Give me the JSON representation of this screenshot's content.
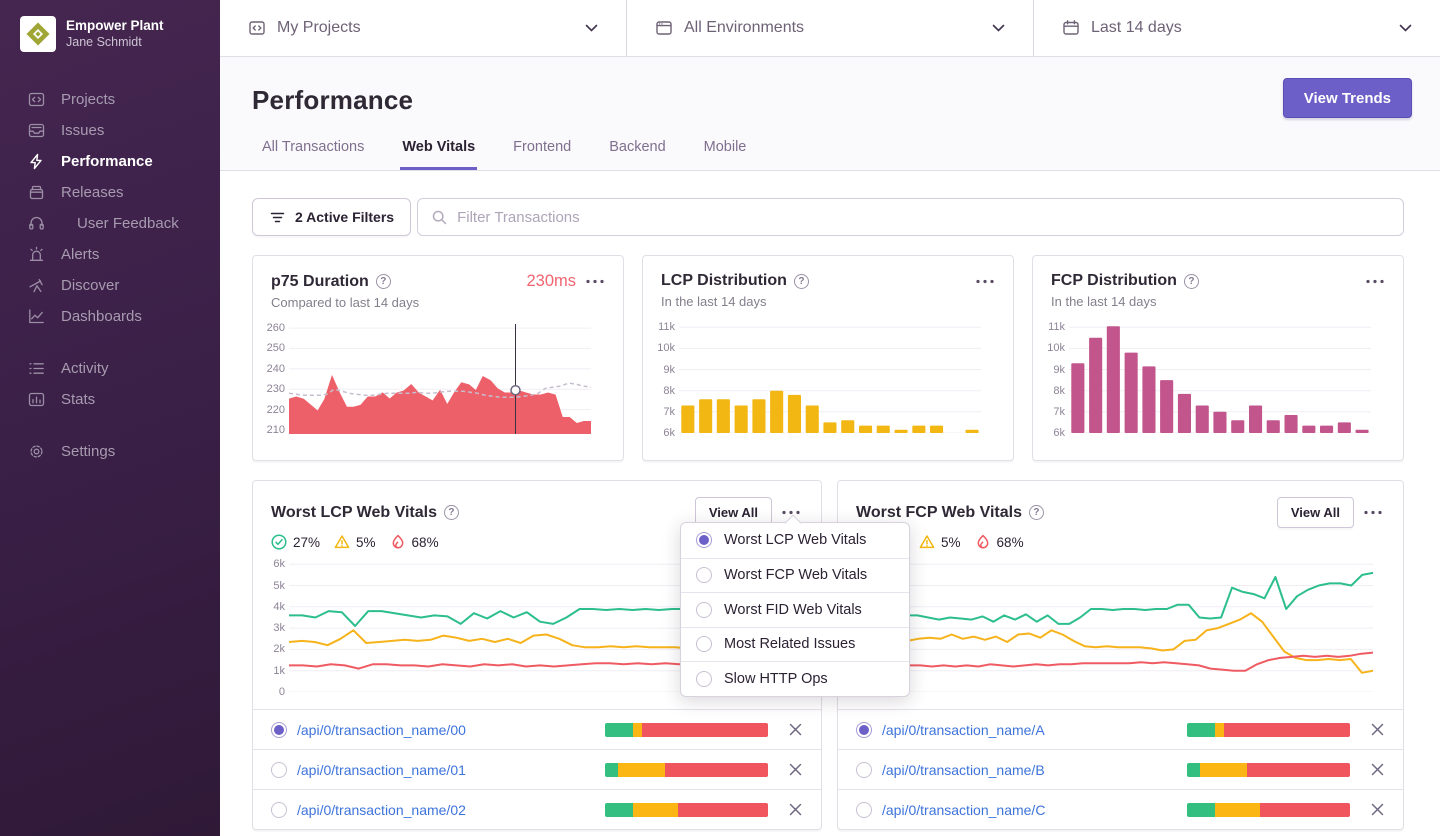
{
  "brand": {
    "org": "Empower Plant",
    "user": "Jane Schmidt"
  },
  "sidebar": {
    "items": [
      {
        "label": "Projects"
      },
      {
        "label": "Issues"
      },
      {
        "label": "Performance",
        "active": true
      },
      {
        "label": "Releases"
      },
      {
        "label": "User Feedback"
      },
      {
        "label": "Alerts"
      },
      {
        "label": "Discover"
      },
      {
        "label": "Dashboards"
      }
    ],
    "secondary": [
      {
        "label": "Activity"
      },
      {
        "label": "Stats"
      }
    ],
    "settings_label": "Settings"
  },
  "topbar": {
    "project_filter": "My Projects",
    "environment_filter": "All Environments",
    "date_filter": "Last 14 days"
  },
  "header": {
    "title": "Performance",
    "view_trends_label": "View Trends",
    "tabs": [
      {
        "label": "All Transactions"
      },
      {
        "label": "Web Vitals",
        "active": true
      },
      {
        "label": "Frontend"
      },
      {
        "label": "Backend"
      },
      {
        "label": "Mobile"
      }
    ]
  },
  "filters": {
    "active_filters_label": "2 Active Filters",
    "search_placeholder": "Filter Transactions"
  },
  "colors": {
    "accent": "#6C5FC7",
    "good_green": "#2CBE8C",
    "meh_yellow": "#F2B712",
    "poor_red": "#EF5B62",
    "p75_area": "#EE6069",
    "fcp_bar": "#C2568C",
    "link_blue": "#3D74DB"
  },
  "cards": {
    "p75": {
      "title": "p75 Duration",
      "value": "230ms",
      "subtitle": "Compared to last 14 days"
    },
    "lcp": {
      "title": "LCP Distribution",
      "subtitle": "In the last 14 days"
    },
    "fcp": {
      "title": "FCP Distribution",
      "subtitle": "In the last 14 days"
    },
    "worst_lcp": {
      "title": "Worst LCP Web Vitals",
      "good_pct": "27%",
      "meh_pct": "5%",
      "poor_pct": "68%",
      "view_all_label": "View All"
    },
    "worst_fcp": {
      "title": "Worst FCP Web Vitals",
      "good_pct": "27%",
      "meh_pct": "5%",
      "poor_pct": "68%",
      "view_all_label": "View All"
    }
  },
  "menu": {
    "items": [
      {
        "label": "Worst LCP Web Vitals",
        "selected": true
      },
      {
        "label": "Worst FCP Web Vitals",
        "selected": false
      },
      {
        "label": "Worst FID Web Vitals",
        "selected": false
      },
      {
        "label": "Most Related Issues",
        "selected": false
      },
      {
        "label": "Slow HTTP Ops",
        "selected": false
      }
    ]
  },
  "transactions": {
    "left": [
      {
        "name": "/api/0/transaction_name/00",
        "selected": true,
        "bar": [
          17,
          6,
          77
        ]
      },
      {
        "name": "/api/0/transaction_name/01",
        "selected": false,
        "bar": [
          8,
          29,
          63
        ]
      },
      {
        "name": "/api/0/transaction_name/02",
        "selected": false,
        "bar": [
          17,
          28,
          55
        ]
      }
    ],
    "right": [
      {
        "name": "/api/0/transaction_name/A",
        "selected": true,
        "bar": [
          17,
          6,
          77
        ]
      },
      {
        "name": "/api/0/transaction_name/B",
        "selected": false,
        "bar": [
          8,
          29,
          63
        ]
      },
      {
        "name": "/api/0/transaction_name/C",
        "selected": false,
        "bar": [
          17,
          28,
          55
        ]
      }
    ]
  },
  "chart_data": {
    "p75": {
      "type": "area",
      "title": "p75 Duration (ms), compared to last 14 days",
      "ylim": [
        208,
        262
      ],
      "yticks": [
        {
          "label": "260",
          "value": 260
        },
        {
          "label": "250",
          "value": 250
        },
        {
          "label": "240",
          "value": 240
        },
        {
          "label": "230",
          "value": 230
        },
        {
          "label": "220",
          "value": 220
        },
        {
          "label": "210",
          "value": 210
        }
      ],
      "series": [
        {
          "name": "p75 duration",
          "style": "area",
          "color": "#EE6069",
          "values": [
            225,
            226,
            225,
            222,
            219,
            225,
            236,
            228,
            221,
            221,
            222,
            226,
            226,
            228,
            225,
            228,
            229,
            232,
            228,
            226,
            224,
            229,
            222,
            228,
            233,
            232,
            229,
            236,
            234,
            230,
            228,
            228,
            229,
            228,
            227,
            227,
            228,
            227,
            216,
            216,
            213,
            214,
            214
          ]
        },
        {
          "name": "previous period",
          "style": "dashed",
          "color": "#C6BECF",
          "values": [
            228,
            227.5,
            227,
            227,
            227,
            227.5,
            230,
            229,
            228,
            227.5,
            227,
            227,
            227.5,
            228,
            228,
            228,
            228,
            228.5,
            228,
            228,
            228.5,
            229,
            229,
            229,
            228.5,
            228,
            227,
            226.5,
            226,
            226,
            226,
            226.5,
            227,
            228,
            230.5,
            231,
            231.5,
            233,
            232.5,
            231.5,
            231
          ]
        }
      ],
      "marker": {
        "x_fraction": 0.75,
        "value": 229.5
      }
    },
    "lcp_distribution": {
      "type": "bar",
      "title": "LCP Distribution, last 14 days",
      "color": "#F2B712",
      "baseline": 6000,
      "ylim": [
        6000,
        11200
      ],
      "yticks": [
        {
          "label": "11k",
          "value": 11000
        },
        {
          "label": "10k",
          "value": 10000
        },
        {
          "label": "9k",
          "value": 9000
        },
        {
          "label": "8k",
          "value": 8000
        },
        {
          "label": "7k",
          "value": 7000
        },
        {
          "label": "6k",
          "value": 6000
        }
      ],
      "values": [
        7300,
        7600,
        7600,
        7300,
        7600,
        8000,
        7800,
        7300,
        6500,
        6600,
        6350,
        6350,
        6150,
        6350,
        6350,
        null,
        6150
      ]
    },
    "fcp_distribution": {
      "type": "bar",
      "title": "FCP Distribution, last 14 days",
      "color": "#C2568C",
      "baseline": 6000,
      "ylim": [
        6000,
        11200
      ],
      "yticks": [
        {
          "label": "11k",
          "value": 11000
        },
        {
          "label": "10k",
          "value": 10000
        },
        {
          "label": "9k",
          "value": 9000
        },
        {
          "label": "8k",
          "value": 8000
        },
        {
          "label": "7k",
          "value": 7000
        },
        {
          "label": "6k",
          "value": 6000
        }
      ],
      "values": [
        9300,
        10500,
        11050,
        9800,
        9150,
        8500,
        7850,
        7300,
        7000,
        6600,
        7300,
        6600,
        6850,
        6350,
        6350,
        6500,
        6150
      ]
    },
    "worst_lcp": {
      "type": "line",
      "title": "Worst LCP Web Vitals",
      "ylim": [
        0,
        6200
      ],
      "yticks": [
        {
          "label": "6k",
          "value": 6000
        },
        {
          "label": "5k",
          "value": 5000
        },
        {
          "label": "4k",
          "value": 4000
        },
        {
          "label": "3k",
          "value": 3000
        },
        {
          "label": "2k",
          "value": 2000
        },
        {
          "label": "1k",
          "value": 1000
        },
        {
          "label": "0",
          "value": 0
        }
      ],
      "series": [
        {
          "name": "good",
          "color": "#2CBE8C",
          "values": [
            3600,
            3600,
            3500,
            3800,
            3750,
            3100,
            3800,
            3800,
            3700,
            3600,
            3500,
            3600,
            3550,
            3200,
            3700,
            3450,
            3800,
            3500,
            3750,
            3300,
            3200,
            3500,
            3900,
            3900,
            3850,
            3900,
            3850,
            3900,
            3850,
            3900,
            3900,
            4100,
            4050,
            3500,
            3400,
            3400,
            5200,
            5000,
            4600
          ]
        },
        {
          "name": "meh",
          "color": "#F6B31B",
          "values": [
            2350,
            2400,
            2350,
            2200,
            2500,
            2900,
            2300,
            2350,
            2400,
            2450,
            2400,
            2450,
            2650,
            2550,
            2400,
            2500,
            2350,
            2500,
            2300,
            2650,
            2700,
            2500,
            2200,
            2100,
            2100,
            2150,
            2100,
            2150,
            2100,
            2100,
            2100,
            2050,
            1950,
            1950,
            2400,
            2500,
            2600,
            2900,
            3200,
            3500
          ]
        },
        {
          "name": "poor",
          "color": "#EF5B62",
          "values": [
            1250,
            1250,
            1200,
            1300,
            1250,
            1100,
            1300,
            1300,
            1250,
            1250,
            1200,
            1300,
            1250,
            1200,
            1300,
            1250,
            1300,
            1200,
            1250,
            1200,
            1250,
            1300,
            1350,
            1350,
            1300,
            1350,
            1300,
            1350,
            1300,
            1350,
            1400,
            1350,
            1200,
            1100,
            1050,
            1000,
            1000
          ]
        }
      ]
    },
    "worst_fcp": {
      "type": "line",
      "title": "Worst FCP Web Vitals",
      "ylim": [
        0,
        6200
      ],
      "yticks": [
        {
          "label": "6k",
          "value": 6000
        },
        {
          "label": "5k",
          "value": 5000
        },
        {
          "label": "4k",
          "value": 4000
        },
        {
          "label": "3k",
          "value": 3000
        },
        {
          "label": "2k",
          "value": 2000
        },
        {
          "label": "1k",
          "value": 1000
        },
        {
          "label": "0",
          "value": 0
        }
      ],
      "series": [
        {
          "name": "good",
          "color": "#2CBE8C",
          "values": [
            3700,
            3300,
            3100,
            3600,
            3600,
            3500,
            3400,
            3500,
            3450,
            3400,
            3550,
            3300,
            3600,
            3400,
            3650,
            3300,
            3600,
            3200,
            3200,
            3500,
            3900,
            3900,
            3850,
            3900,
            3900,
            3850,
            3900,
            3900,
            4100,
            4100,
            3500,
            3450,
            3500,
            4900,
            4700,
            4600,
            4400,
            5400,
            3900,
            4500,
            4800,
            5000,
            5100,
            5100,
            5000,
            5500,
            5600
          ]
        },
        {
          "name": "meh",
          "color": "#F6B31B",
          "values": [
            2600,
            2900,
            2400,
            2400,
            2500,
            2550,
            2500,
            2700,
            2500,
            2600,
            2450,
            2600,
            2350,
            2700,
            2750,
            2550,
            2900,
            2700,
            2400,
            2150,
            2100,
            2150,
            2100,
            2100,
            2100,
            2050,
            1950,
            2000,
            2400,
            2450,
            2900,
            3000,
            3200,
            3400,
            3700,
            3300,
            2600,
            1900,
            1600,
            1500,
            1500,
            1550,
            1500,
            1550,
            900,
            1000
          ]
        },
        {
          "name": "poor",
          "color": "#EF5B62",
          "values": [
            1300,
            1150,
            1300,
            1250,
            1250,
            1200,
            1250,
            1200,
            1250,
            1200,
            1300,
            1250,
            1200,
            1250,
            1300,
            1250,
            1300,
            1300,
            1350,
            1350,
            1350,
            1350,
            1350,
            1400,
            1350,
            1400,
            1350,
            1300,
            1250,
            1100,
            1050,
            1000,
            1000,
            1300,
            1500,
            1600,
            1650,
            1700,
            1650,
            1700,
            1650,
            1700,
            1800,
            1850
          ]
        }
      ]
    }
  }
}
